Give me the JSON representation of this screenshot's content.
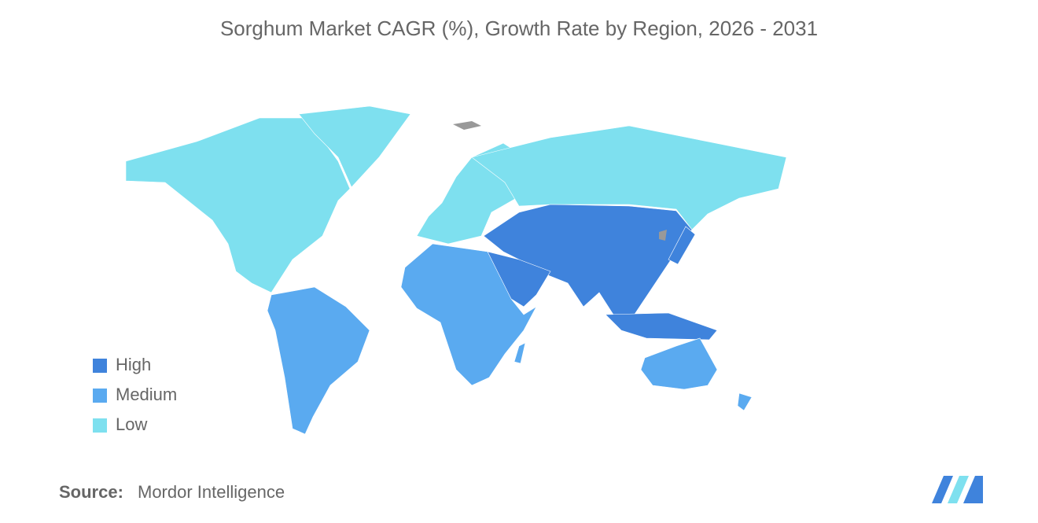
{
  "title": "Sorghum Market CAGR (%), Growth Rate by Region, 2026 - 2031",
  "legend": {
    "items": [
      {
        "label": "High",
        "color": "#3f83dc"
      },
      {
        "label": "Medium",
        "color": "#5aaaf0"
      },
      {
        "label": "Low",
        "color": "#7ee0ef"
      }
    ]
  },
  "source": {
    "label": "Source:",
    "text": "Mordor Intelligence"
  }
}
